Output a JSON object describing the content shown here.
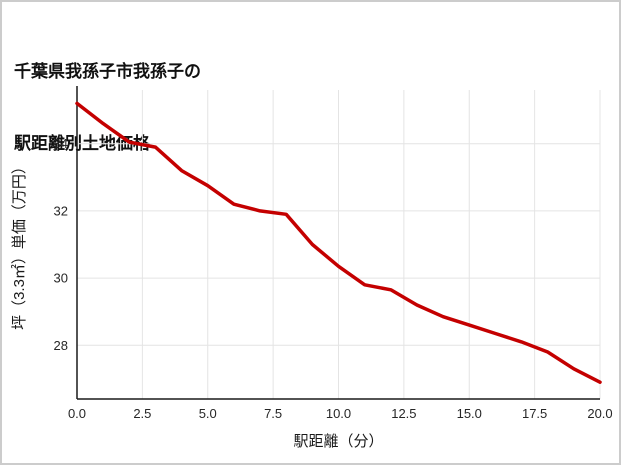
{
  "title": {
    "line1": "千葉県我孫子市我孫子の",
    "line2": "駅距離別土地価格"
  },
  "chart_data": {
    "type": "line",
    "title": "千葉県我孫子市我孫子の駅距離別土地価格",
    "xlabel": "駅距離（分）",
    "ylabel": "坪（3.3㎡）単価（万円）",
    "x": [
      0,
      1,
      2,
      3,
      4,
      5,
      6,
      7,
      8,
      9,
      10,
      11,
      12,
      13,
      14,
      15,
      16,
      17,
      18,
      19,
      20
    ],
    "values": [
      35.2,
      34.6,
      34.05,
      33.9,
      33.2,
      32.75,
      32.2,
      32.0,
      31.9,
      31.0,
      30.35,
      29.8,
      29.65,
      29.2,
      28.85,
      28.6,
      28.35,
      28.1,
      27.8,
      27.3,
      26.9
    ],
    "x_ticks": [
      0,
      2.5,
      5,
      7.5,
      10,
      12.5,
      15,
      17.5,
      20
    ],
    "x_tick_labels": [
      "0.0",
      "2.5",
      "5.0",
      "7.5",
      "10.0",
      "12.5",
      "15.0",
      "17.5",
      "20.0"
    ],
    "y_ticks": [
      28,
      30,
      32,
      34
    ],
    "y_tick_labels": [
      "28",
      "30",
      "32",
      "34"
    ],
    "xlim": [
      0,
      20
    ],
    "ylim": [
      26.4,
      35.6
    ],
    "grid": true,
    "legend": "none",
    "line_color": "#c40000",
    "grid_color": "#e4e4e4",
    "axis_color": "#1a1a1a",
    "tick_label_color": "#262626"
  }
}
